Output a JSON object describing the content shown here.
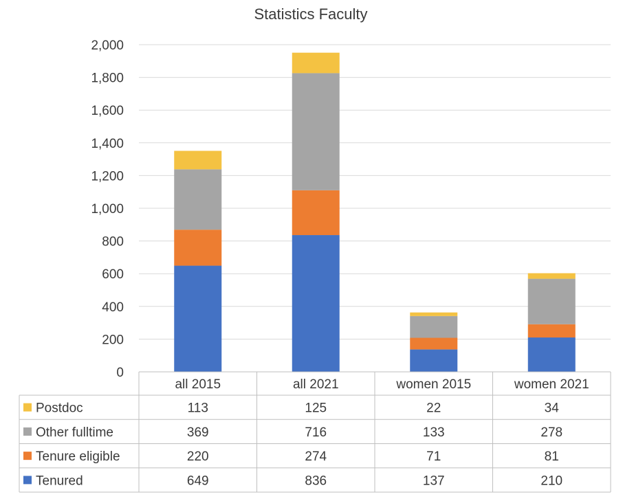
{
  "chart_data": {
    "type": "bar",
    "stacked": true,
    "title": "Statistics Faculty",
    "categories": [
      "all 2015",
      "all 2021",
      "women 2015",
      "women 2021"
    ],
    "series": [
      {
        "name": "Tenured",
        "color": "#4472C4",
        "values": [
          649,
          836,
          137,
          210
        ]
      },
      {
        "name": "Tenure eligible",
        "color": "#ED7D31",
        "values": [
          220,
          274,
          71,
          81
        ]
      },
      {
        "name": "Other fulltime",
        "color": "#A5A5A5",
        "values": [
          369,
          716,
          133,
          278
        ]
      },
      {
        "name": "Postdoc",
        "color": "#F4C242",
        "values": [
          113,
          125,
          22,
          34
        ]
      }
    ],
    "ylim": [
      0,
      2000
    ],
    "yticks": [
      "0",
      "200",
      "400",
      "600",
      "800",
      "1,000",
      "1,200",
      "1,400",
      "1,600",
      "1,800",
      "2,000"
    ],
    "grid": true,
    "legend": "data table below chart",
    "table_row_order": [
      "Postdoc",
      "Other fulltime",
      "Tenure eligible",
      "Tenured"
    ]
  }
}
